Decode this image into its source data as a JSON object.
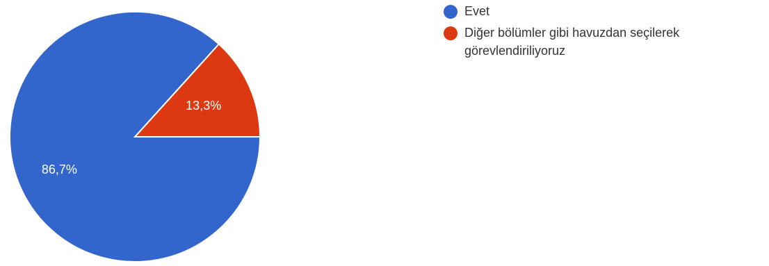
{
  "chart_data": {
    "type": "pie",
    "slices": [
      {
        "label": "Evet",
        "value": 86.7,
        "display": "86,7%",
        "color": "#3366cc"
      },
      {
        "label": "Diğer bölümler gibi havuzdan seçilerek görevlendiriliyoruz",
        "value": 13.3,
        "display": "13,3%",
        "color": "#dc3912"
      }
    ],
    "legend_placement": "top-right"
  }
}
